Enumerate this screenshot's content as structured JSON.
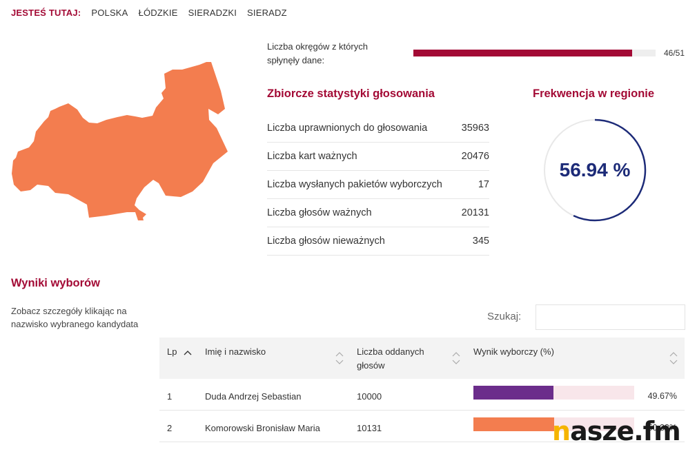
{
  "breadcrumb": {
    "label": "JESTEŚ TUTAJ:",
    "items": [
      "POLSKA",
      "ŁÓDZKIE",
      "SIERADZKI",
      "SIERADZ"
    ]
  },
  "progress": {
    "label": "Liczba okręgów z których spłynęły dane:",
    "received": 46,
    "total": 51,
    "count_text": "46/51"
  },
  "stats": {
    "title": "Zbiorcze statystyki głosowania",
    "rows": [
      {
        "label": "Liczba uprawnionych do głosowania",
        "value": "35963"
      },
      {
        "label": "Liczba kart ważnych",
        "value": "20476"
      },
      {
        "label": "Liczba wysłanych pakietów wyborczych",
        "value": "17"
      },
      {
        "label": "Liczba głosów ważnych",
        "value": "20131"
      },
      {
        "label": "Liczba głosów nieważnych",
        "value": "345"
      }
    ]
  },
  "turnout": {
    "title": "Frekwencja w regionie",
    "value_text": "56.94 %",
    "value": 56.94
  },
  "results": {
    "title": "Wyniki wyborów",
    "hint": "Zobacz szczegóły klikając na nazwisko wybranego kandydata",
    "search_label": "Szukaj:",
    "search_value": "",
    "columns": {
      "lp": "Lp",
      "name": "Imię i nazwisko",
      "votes": "Liczba oddanych głosów",
      "result": "Wynik wyborczy (%)"
    },
    "rows": [
      {
        "lp": "1",
        "name": "Duda Andrzej Sebastian",
        "votes": "10000",
        "percent": 49.67,
        "percent_text": "49.67%",
        "color": "#6b2d8b"
      },
      {
        "lp": "2",
        "name": "Komorowski Bronisław Maria",
        "votes": "10131",
        "percent": 50.33,
        "percent_text": "50.33%",
        "color": "#f37d4f"
      }
    ]
  },
  "colors": {
    "accent": "#a30a35",
    "map_fill": "#f37d4f",
    "turnout_ring": "#1d2b78",
    "turnout_ring_track": "#e8e8e8"
  },
  "logo": {
    "accent_letter": "n",
    "rest": "asze.fm"
  }
}
